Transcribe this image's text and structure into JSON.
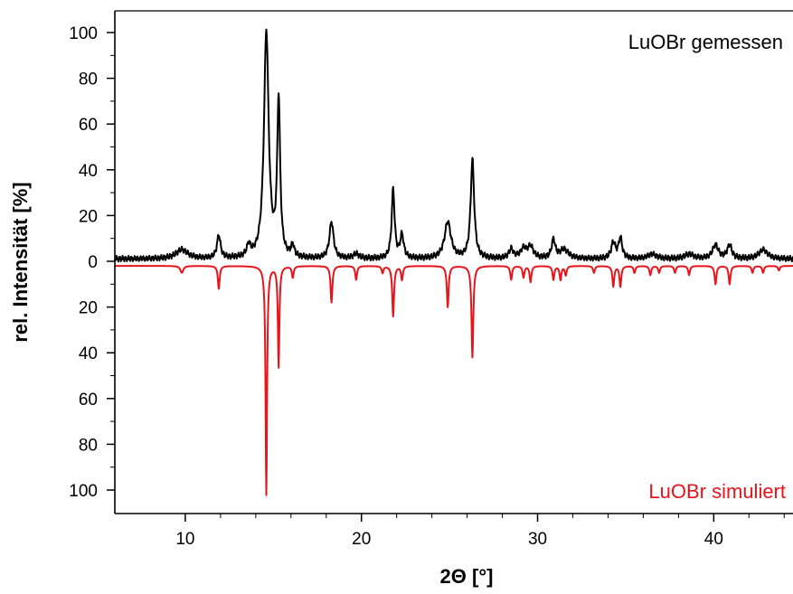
{
  "chart_data": {
    "type": "line",
    "xlabel": "2Θ [°]",
    "ylabel": "rel. Intensität [%]",
    "xlim": [
      6,
      44.5
    ],
    "x_ticks": [
      10,
      20,
      30,
      40
    ],
    "y_ticks": [
      "100",
      "80",
      "60",
      "40",
      "20",
      "0",
      "20",
      "40",
      "60",
      "80",
      "100"
    ],
    "grid": false,
    "series": [
      {
        "name": "LuOBr gemessen",
        "color": "#000000",
        "direction": "up",
        "baseline": 1,
        "peaks": [
          {
            "x": 9.8,
            "y": 4,
            "w": 0.4
          },
          {
            "x": 11.9,
            "y": 10,
            "w": 0.12
          },
          {
            "x": 13.6,
            "y": 5,
            "w": 0.12
          },
          {
            "x": 14.6,
            "y": 99,
            "w": 0.16
          },
          {
            "x": 15.3,
            "y": 68,
            "w": 0.1
          },
          {
            "x": 16.1,
            "y": 5,
            "w": 0.1
          },
          {
            "x": 18.3,
            "y": 16,
            "w": 0.14
          },
          {
            "x": 19.7,
            "y": 2,
            "w": 0.2
          },
          {
            "x": 21.8,
            "y": 30,
            "w": 0.1
          },
          {
            "x": 22.3,
            "y": 10,
            "w": 0.12
          },
          {
            "x": 24.9,
            "y": 16,
            "w": 0.22
          },
          {
            "x": 26.3,
            "y": 43,
            "w": 0.12
          },
          {
            "x": 28.5,
            "y": 4,
            "w": 0.15
          },
          {
            "x": 29.2,
            "y": 4,
            "w": 0.2
          },
          {
            "x": 29.6,
            "y": 5,
            "w": 0.2
          },
          {
            "x": 30.9,
            "y": 8,
            "w": 0.12
          },
          {
            "x": 31.5,
            "y": 4,
            "w": 0.3
          },
          {
            "x": 34.3,
            "y": 7,
            "w": 0.14
          },
          {
            "x": 34.7,
            "y": 9,
            "w": 0.12
          },
          {
            "x": 36.5,
            "y": 2,
            "w": 0.3
          },
          {
            "x": 38.6,
            "y": 2,
            "w": 0.3
          },
          {
            "x": 40.1,
            "y": 6,
            "w": 0.2
          },
          {
            "x": 40.9,
            "y": 6,
            "w": 0.15
          },
          {
            "x": 42.8,
            "y": 4,
            "w": 0.3
          }
        ]
      },
      {
        "name": "LuOBr simuliert",
        "color": "#e8141b",
        "direction": "down",
        "baseline": -2,
        "peaks": [
          {
            "x": 9.8,
            "y": 3,
            "w": 0.1
          },
          {
            "x": 11.9,
            "y": 10,
            "w": 0.06
          },
          {
            "x": 14.6,
            "y": 100,
            "w": 0.05
          },
          {
            "x": 15.3,
            "y": 44,
            "w": 0.05
          },
          {
            "x": 16.1,
            "y": 5,
            "w": 0.06
          },
          {
            "x": 18.3,
            "y": 16,
            "w": 0.06
          },
          {
            "x": 19.7,
            "y": 6,
            "w": 0.06
          },
          {
            "x": 21.2,
            "y": 3,
            "w": 0.06
          },
          {
            "x": 21.8,
            "y": 22,
            "w": 0.06
          },
          {
            "x": 22.3,
            "y": 6,
            "w": 0.06
          },
          {
            "x": 24.9,
            "y": 18,
            "w": 0.06
          },
          {
            "x": 26.3,
            "y": 40,
            "w": 0.06
          },
          {
            "x": 28.5,
            "y": 6,
            "w": 0.06
          },
          {
            "x": 29.2,
            "y": 5,
            "w": 0.06
          },
          {
            "x": 29.6,
            "y": 7,
            "w": 0.06
          },
          {
            "x": 30.9,
            "y": 6,
            "w": 0.06
          },
          {
            "x": 31.3,
            "y": 6,
            "w": 0.06
          },
          {
            "x": 31.6,
            "y": 4,
            "w": 0.06
          },
          {
            "x": 33.2,
            "y": 3,
            "w": 0.06
          },
          {
            "x": 34.3,
            "y": 9,
            "w": 0.06
          },
          {
            "x": 34.7,
            "y": 9,
            "w": 0.06
          },
          {
            "x": 35.5,
            "y": 3,
            "w": 0.06
          },
          {
            "x": 36.4,
            "y": 4,
            "w": 0.06
          },
          {
            "x": 36.9,
            "y": 3,
            "w": 0.06
          },
          {
            "x": 37.8,
            "y": 3,
            "w": 0.06
          },
          {
            "x": 38.6,
            "y": 4,
            "w": 0.06
          },
          {
            "x": 40.1,
            "y": 8,
            "w": 0.06
          },
          {
            "x": 40.9,
            "y": 8,
            "w": 0.06
          },
          {
            "x": 42.2,
            "y": 3,
            "w": 0.06
          },
          {
            "x": 42.8,
            "y": 3,
            "w": 0.06
          },
          {
            "x": 43.7,
            "y": 2,
            "w": 0.06
          }
        ]
      }
    ]
  }
}
